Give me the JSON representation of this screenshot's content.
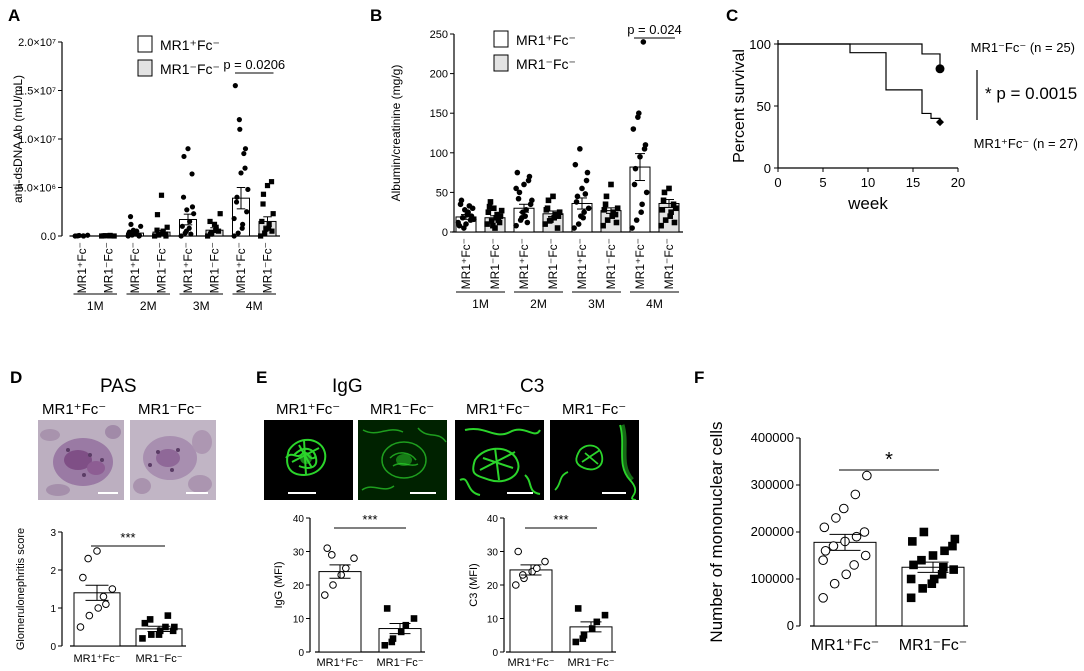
{
  "panels": {
    "A": {
      "letter": "A"
    },
    "B": {
      "letter": "B"
    },
    "C": {
      "letter": "C"
    },
    "D": {
      "letter": "D",
      "title": "PAS",
      "img_label_1": "MR1⁺Fc⁻",
      "img_label_2": "MR1⁻Fc⁻"
    },
    "E": {
      "letter": "E",
      "title_1": "IgG",
      "title_2": "C3",
      "img_label_1": "MR1⁺Fc⁻",
      "img_label_2": "MR1⁻Fc⁻",
      "img_label_3": "MR1⁺Fc⁻",
      "img_label_4": "MR1⁻Fc⁻"
    },
    "F": {
      "letter": "F"
    }
  },
  "colors": {
    "open_bar": "#ffffff",
    "grey_bar": "#e3e3e3",
    "if_green": "#2bd42b",
    "pas_bg": "#b9a9bd",
    "pas_stain": "#7f4f86"
  },
  "chart_data": [
    {
      "id": "A",
      "type": "bar",
      "ylabel": "anti-dsDNA Ab (mU/mL)",
      "ylim": [
        0,
        20000000
      ],
      "yticks": [
        {
          "v": 0,
          "label": "0.0"
        },
        {
          "v": 5000000,
          "label": "5.0×10⁶"
        },
        {
          "v": 10000000,
          "label": "1.0×10⁷"
        },
        {
          "v": 15000000,
          "label": "1.5×10⁷"
        },
        {
          "v": 20000000,
          "label": "2.0×10⁷"
        }
      ],
      "groups": [
        "1M",
        "2M",
        "3M",
        "4M"
      ],
      "categories": [
        "MR1⁺Fc⁻",
        "MR1⁻Fc⁻",
        "MR1⁺Fc⁻",
        "MR1⁻Fc⁻",
        "MR1⁺Fc⁻",
        "MR1⁻Fc⁻",
        "MR1⁺Fc⁻",
        "MR1⁻Fc⁻"
      ],
      "means": [
        0,
        0,
        300000,
        400000,
        1700000,
        600000,
        3900000,
        1500000
      ],
      "sems": [
        30000,
        30000,
        150000,
        180000,
        550000,
        250000,
        1100000,
        480000
      ],
      "points": [
        [
          0,
          50000,
          20000,
          0,
          80000,
          10000
        ],
        [
          0,
          30000,
          10000,
          60000,
          0,
          20000
        ],
        [
          0,
          100000,
          200000,
          500000,
          1000000,
          2000000,
          1200000,
          300000,
          0,
          50000,
          400000,
          600000
        ],
        [
          0,
          100000,
          300000,
          500000,
          900000,
          600000,
          2200000,
          4200000,
          200000,
          0
        ],
        [
          0,
          300000,
          800000,
          1500000,
          2300000,
          4000000,
          8200000,
          9000000,
          6400000,
          3000000,
          1000000,
          500000,
          2700000,
          200000
        ],
        [
          0,
          300000,
          600000,
          900000,
          2300000,
          1500000,
          200000,
          1200000,
          500000
        ],
        [
          0,
          300000,
          800000,
          1200000,
          2500000,
          3500000,
          4000000,
          6500000,
          7000000,
          9000000,
          15500000,
          12000000,
          11000000,
          8500000,
          4800000,
          1800000
        ],
        [
          0,
          300000,
          800000,
          1200000,
          2300000,
          3300000,
          4300000,
          5200000,
          5600000,
          500000,
          1500000,
          700000
        ]
      ],
      "point_shapes": [
        "circle",
        "square",
        "circle",
        "square",
        "circle",
        "square",
        "circle",
        "square"
      ],
      "legend": [
        {
          "label": "MR1⁺Fc⁻",
          "fill": "#ffffff"
        },
        {
          "label": "MR1⁻Fc⁻",
          "fill": "#e3e3e3"
        }
      ],
      "annotation": {
        "text": "p = 0.0206",
        "from": 6,
        "to": 7
      }
    },
    {
      "id": "B",
      "type": "bar",
      "ylabel": "Albumin/creatinine (mg/g)",
      "ylim": [
        0,
        250
      ],
      "yticks": [
        {
          "v": 0,
          "label": "0"
        },
        {
          "v": 50,
          "label": "50"
        },
        {
          "v": 100,
          "label": "100"
        },
        {
          "v": 150,
          "label": "150"
        },
        {
          "v": 200,
          "label": "200"
        },
        {
          "v": 250,
          "label": "250"
        }
      ],
      "groups": [
        "1M",
        "2M",
        "3M",
        "4M"
      ],
      "categories": [
        "MR1⁺Fc⁻",
        "MR1⁻Fc⁻",
        "MR1⁺Fc⁻",
        "MR1⁻Fc⁻",
        "MR1⁺Fc⁻",
        "MR1⁻Fc⁻",
        "MR1⁺Fc⁻",
        "MR1⁻Fc⁻"
      ],
      "means": [
        19,
        18,
        30,
        23,
        36,
        27,
        82,
        36
      ],
      "sems": [
        3,
        2.5,
        5,
        3.5,
        7,
        3.5,
        17,
        5
      ],
      "points": [
        [
          12,
          18,
          22,
          25,
          30,
          35,
          40,
          10,
          15,
          20,
          8,
          5,
          28,
          33,
          16
        ],
        [
          10,
          14,
          18,
          22,
          27,
          32,
          38,
          5,
          12,
          20,
          25,
          8,
          30,
          15
        ],
        [
          8,
          15,
          20,
          28,
          35,
          42,
          50,
          60,
          65,
          70,
          75,
          18,
          25,
          12,
          40,
          55
        ],
        [
          10,
          14,
          18,
          22,
          25,
          30,
          40,
          45,
          5,
          20,
          28,
          15
        ],
        [
          5,
          10,
          18,
          25,
          30,
          38,
          45,
          55,
          65,
          75,
          85,
          105,
          20,
          48
        ],
        [
          8,
          15,
          20,
          25,
          30,
          35,
          45,
          60,
          22,
          12,
          28
        ],
        [
          5,
          15,
          25,
          35,
          50,
          60,
          80,
          95,
          105,
          110,
          130,
          145,
          150,
          240
        ],
        [
          8,
          15,
          20,
          25,
          30,
          40,
          50,
          55,
          35,
          12,
          28
        ]
      ],
      "point_shapes": [
        "circle",
        "square",
        "circle",
        "square",
        "circle",
        "square",
        "circle",
        "square"
      ],
      "legend": [
        {
          "label": "MR1⁺Fc⁻",
          "fill": "#ffffff"
        },
        {
          "label": "MR1⁻Fc⁻",
          "fill": "#e3e3e3"
        }
      ],
      "annotation": {
        "text": "p = 0.024",
        "from": 6,
        "to": 7
      }
    },
    {
      "id": "C",
      "type": "line",
      "xlabel": "week",
      "ylabel": "Percent survival",
      "xlim": [
        0,
        20
      ],
      "ylim": [
        0,
        100
      ],
      "xticks": [
        0,
        5,
        10,
        15,
        20
      ],
      "yticks": [
        0,
        50,
        100
      ],
      "series": [
        {
          "name": "MR1⁻Fc⁻ (n = 25)",
          "steps": [
            [
              0,
              100
            ],
            [
              16,
              100
            ],
            [
              16,
              92
            ],
            [
              18,
              92
            ],
            [
              18,
              80
            ]
          ],
          "end_marker": "circle"
        },
        {
          "name": "MR1⁺Fc⁻ (n = 27)",
          "steps": [
            [
              0,
              100
            ],
            [
              8,
              100
            ],
            [
              8,
              93
            ],
            [
              12,
              93
            ],
            [
              12,
              63
            ],
            [
              16,
              63
            ],
            [
              16,
              44
            ],
            [
              17,
              44
            ],
            [
              17,
              40
            ],
            [
              18,
              40
            ],
            [
              18,
              37
            ]
          ],
          "end_marker": "diamond"
        }
      ],
      "annotation": "* p = 0.0015"
    },
    {
      "id": "D",
      "type": "bar",
      "ylabel": "Glomerulonephritis score",
      "ylim": [
        0,
        3
      ],
      "yticks": [
        {
          "v": 0,
          "label": "0"
        },
        {
          "v": 1,
          "label": "1"
        },
        {
          "v": 2,
          "label": "2"
        },
        {
          "v": 3,
          "label": "3"
        }
      ],
      "categories": [
        "MR1⁺Fc⁻",
        "MR1⁻Fc⁻"
      ],
      "means": [
        1.4,
        0.45
      ],
      "sems": [
        0.2,
        0.07
      ],
      "points": [
        [
          0.5,
          0.8,
          1.0,
          1.3,
          1.5,
          1.8,
          2.3,
          2.5,
          1.1
        ],
        [
          0.2,
          0.3,
          0.4,
          0.5,
          0.5,
          0.6,
          0.7,
          0.3,
          0.8,
          0.4
        ]
      ],
      "point_shapes": [
        "open-circle",
        "square"
      ],
      "annotation": {
        "text": "***",
        "from": 0,
        "to": 1
      }
    },
    {
      "id": "E1",
      "type": "bar",
      "ylabel": "IgG (MFI)",
      "ylim": [
        0,
        40
      ],
      "yticks": [
        {
          "v": 0,
          "label": "0"
        },
        {
          "v": 10,
          "label": "10"
        },
        {
          "v": 20,
          "label": "20"
        },
        {
          "v": 30,
          "label": "30"
        },
        {
          "v": 40,
          "label": "40"
        }
      ],
      "categories": [
        "MR1⁺Fc⁻",
        "MR1⁻Fc⁻"
      ],
      "means": [
        24,
        7
      ],
      "sems": [
        2,
        1.5
      ],
      "points": [
        [
          17,
          20,
          23,
          25,
          28,
          31,
          29
        ],
        [
          2,
          4,
          6,
          8,
          10,
          13,
          3
        ]
      ],
      "point_shapes": [
        "open-circle",
        "square"
      ],
      "annotation": {
        "text": "***",
        "from": 0,
        "to": 1
      }
    },
    {
      "id": "E2",
      "type": "bar",
      "ylabel": "C3 (MFI)",
      "ylim": [
        0,
        40
      ],
      "yticks": [
        {
          "v": 0,
          "label": "0"
        },
        {
          "v": 10,
          "label": "10"
        },
        {
          "v": 20,
          "label": "20"
        },
        {
          "v": 30,
          "label": "30"
        },
        {
          "v": 40,
          "label": "40"
        }
      ],
      "categories": [
        "MR1⁺Fc⁻",
        "MR1⁻Fc⁻"
      ],
      "means": [
        24.5,
        7.5
      ],
      "sems": [
        1.5,
        1.5
      ],
      "points": [
        [
          20,
          22,
          24,
          25,
          27,
          30,
          23
        ],
        [
          3,
          5,
          7,
          9,
          11,
          13,
          4
        ]
      ],
      "point_shapes": [
        "open-circle",
        "square"
      ],
      "annotation": {
        "text": "***",
        "from": 0,
        "to": 1
      }
    },
    {
      "id": "F",
      "type": "bar",
      "ylabel": "Number of mononuclear cells",
      "ylim": [
        0,
        400000
      ],
      "yticks": [
        {
          "v": 0,
          "label": "0"
        },
        {
          "v": 100000,
          "label": "100000"
        },
        {
          "v": 200000,
          "label": "200000"
        },
        {
          "v": 300000,
          "label": "300000"
        },
        {
          "v": 400000,
          "label": "400000"
        }
      ],
      "categories": [
        "MR1⁺Fc⁻",
        "MR1⁻Fc⁻"
      ],
      "means": [
        178000,
        125000
      ],
      "sems": [
        17000,
        11000
      ],
      "points": [
        [
          60000,
          90000,
          110000,
          130000,
          150000,
          160000,
          170000,
          180000,
          190000,
          200000,
          210000,
          230000,
          250000,
          280000,
          320000,
          140000
        ],
        [
          60000,
          80000,
          100000,
          110000,
          120000,
          130000,
          140000,
          150000,
          160000,
          170000,
          180000,
          200000,
          90000,
          125000,
          185000,
          100000
        ]
      ],
      "point_shapes": [
        "open-circle",
        "square"
      ],
      "annotation": {
        "text": "*",
        "from": 0,
        "to": 1
      }
    }
  ]
}
